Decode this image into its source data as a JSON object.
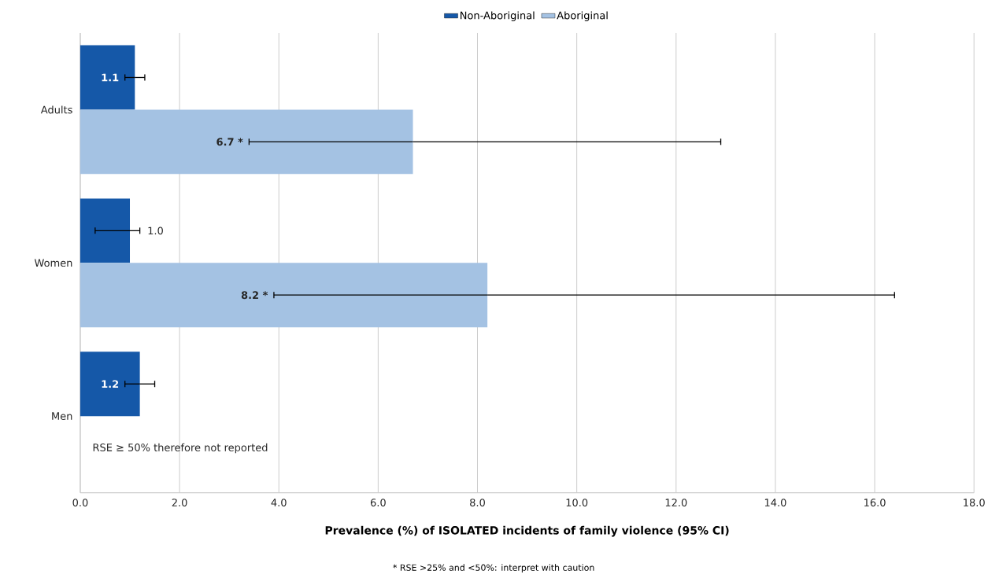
{
  "chart_data": {
    "type": "bar",
    "orientation": "horizontal",
    "categories": [
      "Adults",
      "Women",
      "Men"
    ],
    "series": [
      {
        "name": "Non-Aboriginal",
        "color": "#1558a8",
        "values": [
          1.1,
          1.0,
          1.2
        ],
        "errors": [
          [
            0.9,
            1.3
          ],
          [
            0.3,
            1.2
          ],
          [
            0.9,
            1.5
          ]
        ],
        "value_labels": [
          "1.1",
          "1.0",
          "1.2"
        ]
      },
      {
        "name": "Aboriginal",
        "color": "#a4c2e3",
        "values": [
          6.7,
          8.2,
          null
        ],
        "errors": [
          [
            3.4,
            12.9
          ],
          [
            3.9,
            16.4
          ],
          null
        ],
        "value_labels": [
          "6.7 *",
          "8.2 *",
          null
        ]
      }
    ],
    "xlim": [
      0,
      18
    ],
    "xticks": [
      {
        "value": 0,
        "label": "0.0"
      },
      {
        "value": 2,
        "label": "2.0"
      },
      {
        "value": 4,
        "label": "4.0"
      },
      {
        "value": 6,
        "label": "6.0"
      },
      {
        "value": 8,
        "label": "8.0"
      },
      {
        "value": 10,
        "label": "10.0"
      },
      {
        "value": 12,
        "label": "12.0"
      },
      {
        "value": 14,
        "label": "14.0"
      },
      {
        "value": 16,
        "label": "16.0"
      },
      {
        "value": 18,
        "label": "18.0"
      }
    ],
    "xlabel": "Prevalence (%) of ISOLATED incidents of family violence (95% CI)",
    "annotations": [
      "RSE ≥ 50% therefore not reported",
      "* RSE >25% and <50%: interpret with caution"
    ],
    "grid": "x",
    "legend": "top"
  }
}
